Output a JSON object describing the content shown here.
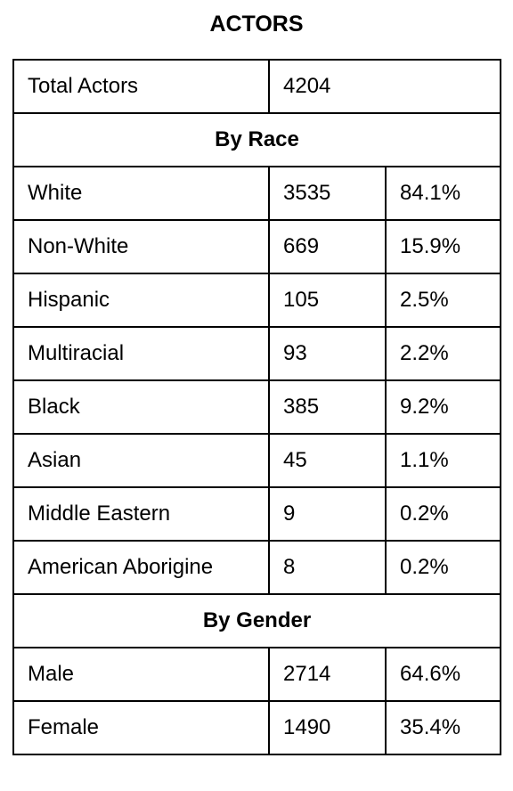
{
  "title": "ACTORS",
  "total": {
    "label": "Total Actors",
    "value": "4204"
  },
  "race": {
    "heading": "By Race",
    "rows": [
      {
        "label": "White",
        "count": "3535",
        "percent": "84.1%"
      },
      {
        "label": "Non-White",
        "count": "669",
        "percent": "15.9%"
      },
      {
        "label": "Hispanic",
        "count": "105",
        "percent": "2.5%"
      },
      {
        "label": "Multiracial",
        "count": "93",
        "percent": "2.2%"
      },
      {
        "label": "Black",
        "count": "385",
        "percent": "9.2%"
      },
      {
        "label": "Asian",
        "count": "45",
        "percent": "1.1%"
      },
      {
        "label": "Middle Eastern",
        "count": "9",
        "percent": "0.2%"
      },
      {
        "label": "American Aborigine",
        "count": "8",
        "percent": "0.2%"
      }
    ]
  },
  "gender": {
    "heading": "By Gender",
    "rows": [
      {
        "label": "Male",
        "count": "2714",
        "percent": "64.6%"
      },
      {
        "label": "Female",
        "count": "1490",
        "percent": "35.4%"
      }
    ]
  }
}
